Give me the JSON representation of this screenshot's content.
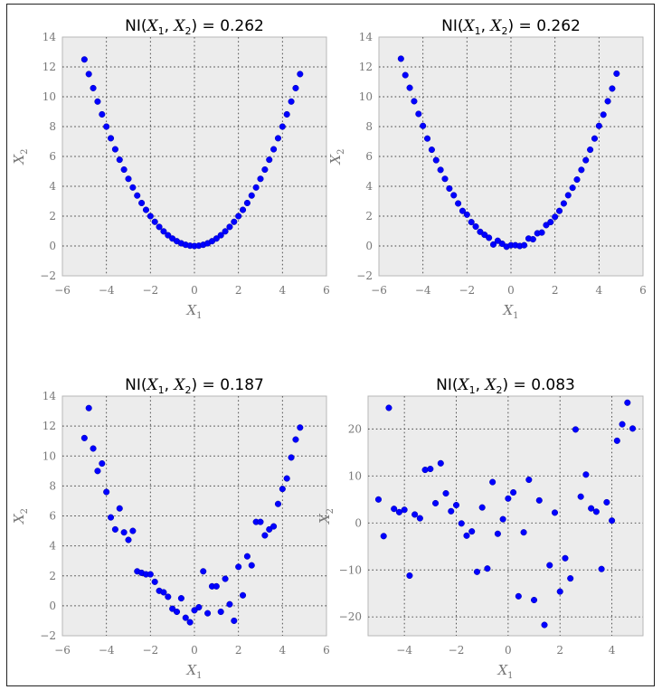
{
  "chart_data": [
    {
      "type": "scatter",
      "title": "NI(X₁, X₂) = 0.262",
      "title_parts": {
        "lead": "NI(",
        "a": "X",
        "a_sub": "1",
        "sep": ", ",
        "b": "X",
        "b_sub": "2",
        "tail": ") = 0.262"
      },
      "xlabel": "X",
      "xlabel_sub": "1",
      "ylabel": "X",
      "ylabel_sub": "2",
      "xlim": [
        -6,
        6
      ],
      "ylim": [
        -2,
        14
      ],
      "xticks": [
        -6,
        -4,
        -2,
        0,
        2,
        4,
        6
      ],
      "yticks": [
        -2,
        0,
        2,
        4,
        6,
        8,
        10,
        12,
        14
      ],
      "xtick_labels": [
        "−6",
        "−4",
        "−2",
        "0",
        "2",
        "4",
        "6"
      ],
      "ytick_labels": [
        "−2",
        "0",
        "2",
        "4",
        "6",
        "8",
        "10",
        "12",
        "14"
      ],
      "grid": true,
      "color": "#0000ff",
      "x": [
        -5.0,
        -4.8,
        -4.6,
        -4.4,
        -4.2,
        -4.0,
        -3.8,
        -3.6,
        -3.4,
        -3.2,
        -3.0,
        -2.8,
        -2.6,
        -2.4,
        -2.2,
        -2.0,
        -1.8,
        -1.6,
        -1.4,
        -1.2,
        -1.0,
        -0.8,
        -0.6,
        -0.4,
        -0.2,
        0.0,
        0.2,
        0.4,
        0.6,
        0.8,
        1.0,
        1.2,
        1.4,
        1.6,
        1.8,
        2.0,
        2.2,
        2.4,
        2.6,
        2.8,
        3.0,
        3.2,
        3.4,
        3.6,
        3.8,
        4.0,
        4.2,
        4.4,
        4.6,
        4.8
      ],
      "y": [
        12.5,
        11.52,
        10.58,
        9.68,
        8.82,
        8.0,
        7.22,
        6.48,
        5.78,
        5.12,
        4.5,
        3.92,
        3.38,
        2.88,
        2.42,
        2.0,
        1.62,
        1.28,
        0.98,
        0.72,
        0.5,
        0.32,
        0.18,
        0.08,
        0.02,
        0.0,
        0.02,
        0.08,
        0.18,
        0.32,
        0.5,
        0.72,
        0.98,
        1.28,
        1.62,
        2.0,
        2.42,
        2.88,
        3.38,
        3.92,
        4.5,
        5.12,
        5.78,
        6.48,
        7.22,
        8.0,
        8.82,
        9.68,
        10.58,
        11.52
      ]
    },
    {
      "type": "scatter",
      "title": "NI(X₁, X₂) = 0.262",
      "title_parts": {
        "lead": "NI(",
        "a": "X",
        "a_sub": "1",
        "sep": ", ",
        "b": "X",
        "b_sub": "2",
        "tail": ") = 0.262"
      },
      "xlabel": "X",
      "xlabel_sub": "1",
      "ylabel": "X",
      "ylabel_sub": "2",
      "xlim": [
        -6,
        6
      ],
      "ylim": [
        -2,
        14
      ],
      "xticks": [
        -6,
        -4,
        -2,
        0,
        2,
        4,
        6
      ],
      "yticks": [
        -2,
        0,
        2,
        4,
        6,
        8,
        10,
        12,
        14
      ],
      "xtick_labels": [
        "−6",
        "−4",
        "−2",
        "0",
        "2",
        "4",
        "6"
      ],
      "ytick_labels": [
        "−2",
        "0",
        "2",
        "4",
        "6",
        "8",
        "10",
        "12",
        "14"
      ],
      "grid": true,
      "color": "#0000ff",
      "x": [
        -5.0,
        -4.8,
        -4.6,
        -4.4,
        -4.2,
        -4.0,
        -3.8,
        -3.6,
        -3.4,
        -3.2,
        -3.0,
        -2.8,
        -2.6,
        -2.4,
        -2.2,
        -2.0,
        -1.8,
        -1.6,
        -1.4,
        -1.2,
        -1.0,
        -0.8,
        -0.6,
        -0.4,
        -0.2,
        0.0,
        0.2,
        0.4,
        0.6,
        0.8,
        1.0,
        1.2,
        1.4,
        1.6,
        1.8,
        2.0,
        2.2,
        2.4,
        2.6,
        2.8,
        3.0,
        3.2,
        3.4,
        3.6,
        3.8,
        4.0,
        4.2,
        4.4,
        4.6,
        4.8
      ],
      "y": [
        12.55,
        11.45,
        10.6,
        9.7,
        8.85,
        8.05,
        7.2,
        6.45,
        5.75,
        5.1,
        4.5,
        3.85,
        3.4,
        2.85,
        2.35,
        2.1,
        1.6,
        1.3,
        0.95,
        0.75,
        0.55,
        0.1,
        0.35,
        0.15,
        -0.05,
        0.05,
        0.05,
        0.0,
        0.05,
        0.5,
        0.45,
        0.85,
        0.9,
        1.4,
        1.6,
        1.95,
        2.35,
        2.85,
        3.4,
        3.9,
        4.45,
        5.1,
        5.75,
        6.45,
        7.2,
        8.05,
        8.8,
        9.7,
        10.55,
        11.55
      ]
    },
    {
      "type": "scatter",
      "title": "NI(X₁, X₂) = 0.187",
      "title_parts": {
        "lead": "NI(",
        "a": "X",
        "a_sub": "1",
        "sep": ", ",
        "b": "X",
        "b_sub": "2",
        "tail": ") = 0.187"
      },
      "xlabel": "X",
      "xlabel_sub": "1",
      "ylabel": "X",
      "ylabel_sub": "2",
      "xlim": [
        -6,
        6
      ],
      "ylim": [
        -2,
        14
      ],
      "xticks": [
        -6,
        -4,
        -2,
        0,
        2,
        4,
        6
      ],
      "yticks": [
        -2,
        0,
        2,
        4,
        6,
        8,
        10,
        12,
        14
      ],
      "xtick_labels": [
        "−6",
        "−4",
        "−2",
        "0",
        "2",
        "4",
        "6"
      ],
      "ytick_labels": [
        "−2",
        "0",
        "2",
        "4",
        "6",
        "8",
        "10",
        "12",
        "14"
      ],
      "grid": true,
      "color": "#0000ff",
      "x": [
        -5.0,
        -4.8,
        -4.6,
        -4.4,
        -4.2,
        -4.0,
        -3.8,
        -3.6,
        -3.4,
        -3.2,
        -3.0,
        -2.8,
        -2.6,
        -2.4,
        -2.2,
        -2.0,
        -1.8,
        -1.6,
        -1.4,
        -1.2,
        -1.0,
        -0.8,
        -0.6,
        -0.4,
        -0.2,
        0.0,
        0.2,
        0.4,
        0.6,
        0.8,
        1.0,
        1.2,
        1.4,
        1.6,
        1.8,
        2.0,
        2.2,
        2.4,
        2.6,
        2.8,
        3.0,
        3.2,
        3.4,
        3.6,
        3.8,
        4.0,
        4.2,
        4.4,
        4.6,
        4.8
      ],
      "y": [
        11.2,
        13.2,
        10.5,
        9.0,
        9.5,
        7.6,
        5.9,
        5.1,
        6.5,
        4.9,
        4.4,
        5.0,
        2.3,
        2.2,
        2.1,
        2.1,
        1.6,
        1.0,
        0.9,
        0.6,
        -0.2,
        -0.4,
        0.5,
        -0.8,
        -1.1,
        -0.3,
        -0.1,
        2.3,
        -0.5,
        1.3,
        1.3,
        -0.4,
        1.8,
        0.1,
        -1.0,
        2.6,
        0.7,
        3.3,
        2.7,
        5.6,
        5.6,
        4.7,
        5.1,
        5.3,
        6.8,
        7.8,
        8.5,
        9.9,
        11.1,
        11.9
      ]
    },
    {
      "type": "scatter",
      "title": "NI(X₁, X₂) = 0.083",
      "title_parts": {
        "lead": "NI(",
        "a": "X",
        "a_sub": "1",
        "sep": ", ",
        "b": "X",
        "b_sub": "2",
        "tail": ") = 0.083"
      },
      "xlabel": "X",
      "xlabel_sub": "1",
      "ylabel": "X",
      "ylabel_sub": "2",
      "xlim": [
        -5.4,
        5.2
      ],
      "ylim": [
        -24,
        27
      ],
      "xticks": [
        -4,
        -2,
        0,
        2,
        4
      ],
      "yticks": [
        -20,
        -10,
        0,
        10,
        20
      ],
      "xtick_labels": [
        "−4",
        "−2",
        "0",
        "2",
        "4"
      ],
      "ytick_labels": [
        "−20",
        "−10",
        "0",
        "10",
        "20"
      ],
      "grid": true,
      "color": "#0000ff",
      "x": [
        -5.0,
        -4.8,
        -4.6,
        -4.4,
        -4.2,
        -4.0,
        -3.8,
        -3.6,
        -3.4,
        -3.2,
        -3.0,
        -2.8,
        -2.6,
        -2.4,
        -2.2,
        -2.0,
        -1.8,
        -1.6,
        -1.4,
        -1.2,
        -1.0,
        -0.8,
        -0.6,
        -0.4,
        -0.2,
        0.0,
        0.2,
        0.4,
        0.6,
        0.8,
        1.0,
        1.2,
        1.4,
        1.6,
        1.8,
        2.0,
        2.2,
        2.4,
        2.6,
        2.8,
        3.0,
        3.2,
        3.4,
        3.6,
        3.8,
        4.0,
        4.2,
        4.4,
        4.6,
        4.8
      ],
      "y": [
        5.0,
        -2.8,
        24.5,
        3.0,
        2.3,
        2.8,
        -11.2,
        1.8,
        1.0,
        11.3,
        11.5,
        4.2,
        12.7,
        6.3,
        2.5,
        3.8,
        -0.1,
        -2.7,
        -1.8,
        -10.4,
        3.3,
        -9.7,
        8.7,
        -2.3,
        0.8,
        5.2,
        6.5,
        -15.6,
        -2.0,
        9.2,
        -16.4,
        4.8,
        -21.7,
        -9.0,
        2.2,
        -14.6,
        -7.5,
        -11.8,
        19.9,
        5.6,
        10.3,
        3.1,
        2.4,
        -9.8,
        4.4,
        0.5,
        17.5,
        21.0,
        25.6,
        20.1
      ]
    }
  ]
}
